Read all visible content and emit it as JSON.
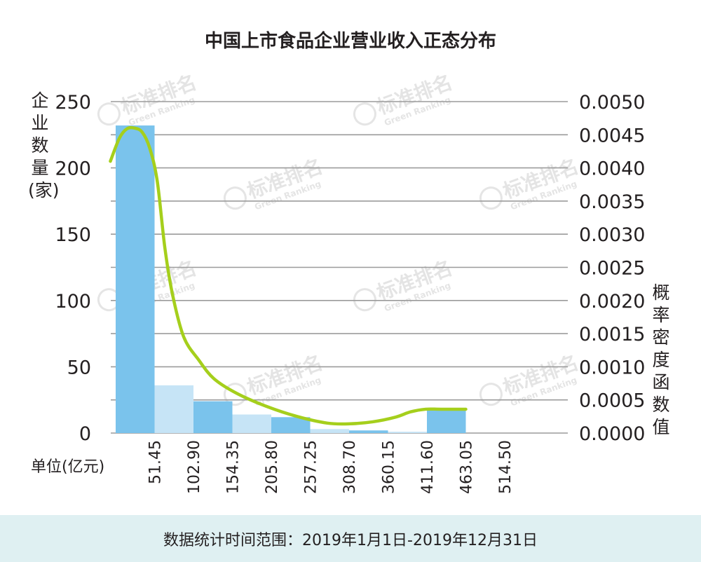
{
  "chart_data": {
    "type": "bar",
    "title": "中国上市食品企业营业收入正态分布",
    "ylabel_left": "企业数量(家)",
    "ylabel_right": "概率密度函数值",
    "unit_label": "单位(亿元)",
    "footer": "数据统计时间范围：2019年1月1日-2019年12月31日",
    "ylim_left": [
      0,
      250
    ],
    "yticks_left": [
      "250",
      "200",
      "150",
      "100",
      "50",
      "0"
    ],
    "ylim_right": [
      0,
      0.005
    ],
    "yticks_right": [
      "0.0050",
      "0.0045",
      "0.0040",
      "0.0035",
      "0.0030",
      "0.0025",
      "0.0020",
      "0.0015",
      "0.0010",
      "0.0005",
      "0.0000"
    ],
    "xticks": [
      "51.45",
      "102.90",
      "154.35",
      "205.80",
      "257.25",
      "308.70",
      "360.15",
      "411.60",
      "463.05",
      "514.50"
    ],
    "grid": true,
    "bars": [
      {
        "x0": 0,
        "x1": 51.45,
        "value": 232,
        "color": "#7ac3ec"
      },
      {
        "x0": 51.45,
        "x1": 102.9,
        "value": 36,
        "color": "#c6e4f6"
      },
      {
        "x0": 102.9,
        "x1": 154.35,
        "value": 24,
        "color": "#7ac3ec"
      },
      {
        "x0": 154.35,
        "x1": 205.8,
        "value": 14,
        "color": "#c6e4f6"
      },
      {
        "x0": 205.8,
        "x1": 257.25,
        "value": 12,
        "color": "#7ac3ec"
      },
      {
        "x0": 257.25,
        "x1": 308.7,
        "value": 3,
        "color": "#c6e4f6"
      },
      {
        "x0": 308.7,
        "x1": 360.15,
        "value": 2,
        "color": "#7ac3ec"
      },
      {
        "x0": 360.15,
        "x1": 411.6,
        "value": 1,
        "color": "#c6e4f6"
      },
      {
        "x0": 411.6,
        "x1": 463.05,
        "value": 17,
        "color": "#7ac3ec"
      }
    ],
    "density_curve": {
      "color": "#a5cf1c",
      "x": [
        -7,
        5,
        15,
        25,
        35,
        45,
        55,
        65,
        75,
        90,
        110,
        130,
        160,
        200,
        240,
        280,
        310,
        340,
        370,
        390,
        410,
        430,
        463.05
      ],
      "y": [
        0.0041,
        0.00445,
        0.00459,
        0.0046,
        0.00454,
        0.0043,
        0.0038,
        0.0028,
        0.0021,
        0.00145,
        0.0011,
        0.00082,
        0.0006,
        0.0004,
        0.00025,
        0.00015,
        0.00014,
        0.00017,
        0.00024,
        0.00032,
        0.00036,
        0.00036,
        0.00036
      ]
    }
  },
  "watermark": {
    "text": "标准排名",
    "subtext": "Green Ranking"
  }
}
